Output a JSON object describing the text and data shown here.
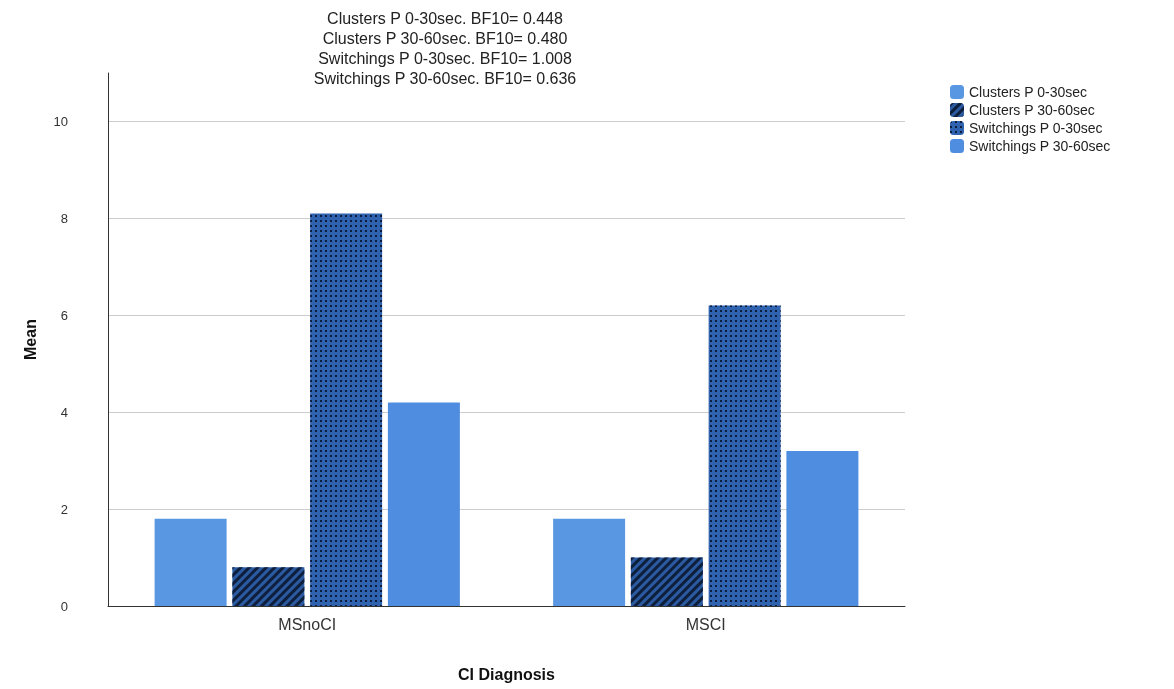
{
  "chart_data": {
    "type": "bar",
    "xlabel": "CI Diagnosis",
    "ylabel": "Mean",
    "annotations": [
      "Clusters P 0-30sec. BF10= 0.448",
      "Clusters P 30-60sec. BF10= 0.480",
      "Switchings P 0-30sec. BF10= 1.008",
      "Switchings P 30-60sec. BF10= 0.636"
    ],
    "categories": [
      "MSnoCI",
      "MSCI"
    ],
    "series": [
      {
        "name": "Clusters P 0-30sec",
        "color": "#5a97e3",
        "values": [
          1.8,
          1.8
        ]
      },
      {
        "name": "Clusters P 30-60sec",
        "color": "#2c5aa0",
        "values": [
          0.8,
          1.0
        ]
      },
      {
        "name": "Switchings P 0-30sec",
        "color": "#2f63b0",
        "values": [
          8.1,
          6.2
        ]
      },
      {
        "name": "Switchings P 30-60sec",
        "color": "#4f8de0",
        "values": [
          4.2,
          3.2
        ]
      }
    ],
    "ylim": [
      0,
      11
    ],
    "yticks": [
      0,
      2,
      4,
      6,
      8,
      10
    ],
    "grid": "y",
    "legend": "top right"
  }
}
